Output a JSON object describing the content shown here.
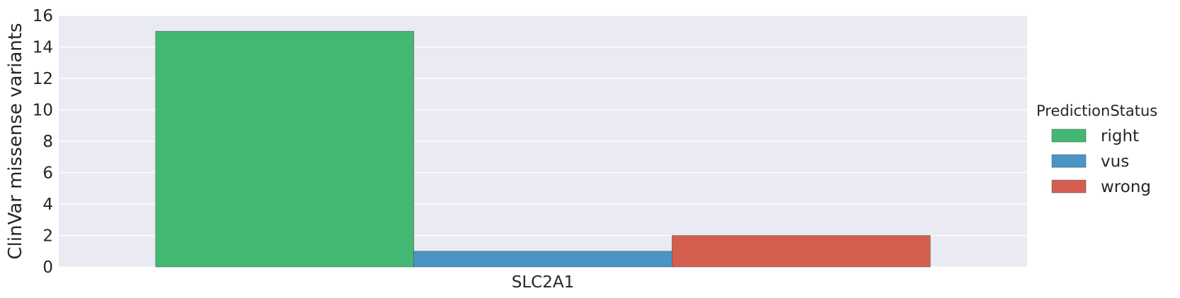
{
  "chart_data": {
    "type": "bar",
    "categories": [
      "SLC2A1"
    ],
    "series": [
      {
        "name": "right",
        "values": [
          15
        ],
        "color": "#43b873"
      },
      {
        "name": "vus",
        "values": [
          1
        ],
        "color": "#4a95c8"
      },
      {
        "name": "wrong",
        "values": [
          2
        ],
        "color": "#d45f50"
      }
    ],
    "title": "",
    "xlabel": "",
    "ylabel": "ClinVar missense variants",
    "ylim": [
      0,
      16
    ],
    "yticks": [
      0,
      2,
      4,
      6,
      8,
      10,
      12,
      14,
      16
    ],
    "grid": true,
    "legend_title": "PredictionStatus",
    "legend_position": "right"
  }
}
